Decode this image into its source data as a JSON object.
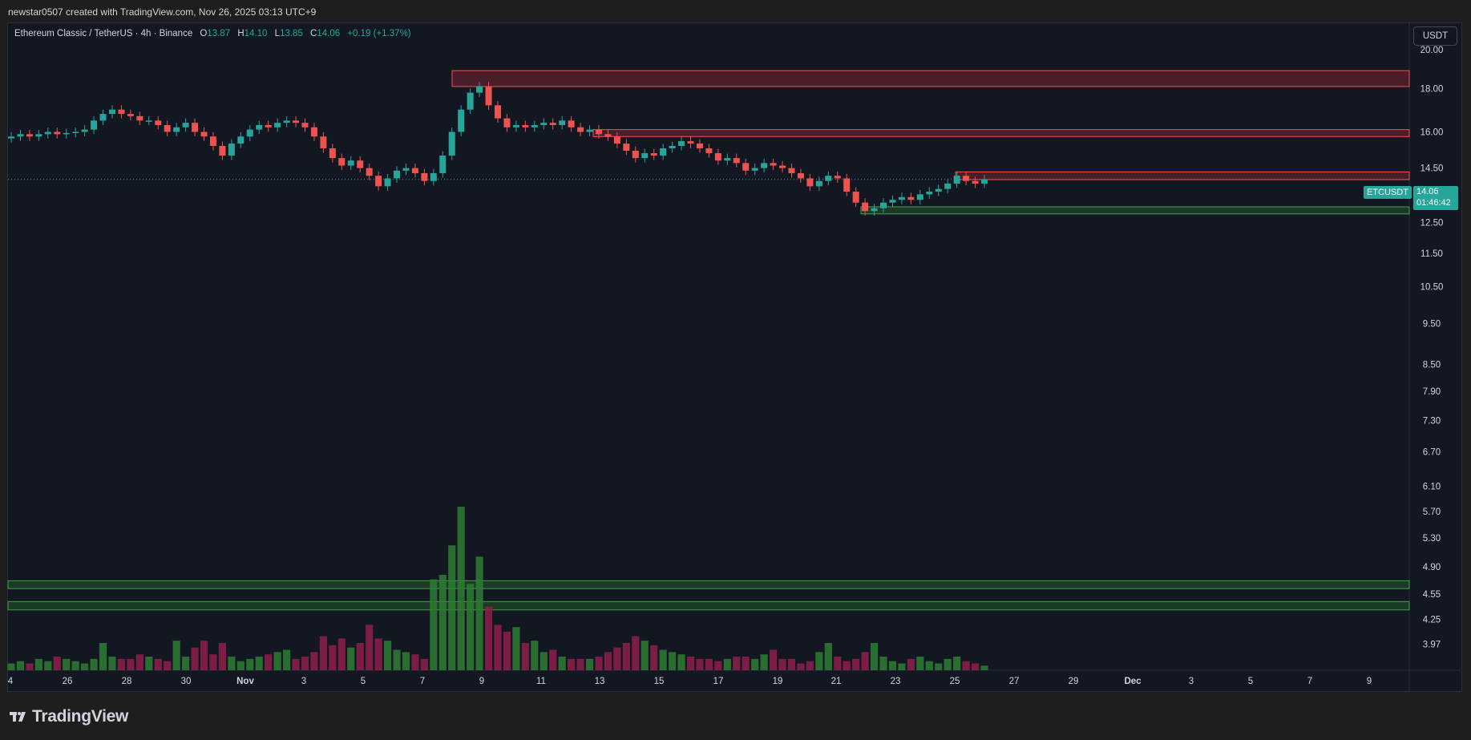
{
  "header": {
    "attribution": "newstar0507 created with TradingView.com, Nov 26, 2025 03:13 UTC+9"
  },
  "legend": {
    "symbol_desc": "Ethereum Classic / TetherUS · 4h · Binance",
    "o_label": "O",
    "o_value": "13.87",
    "h_label": "H",
    "h_value": "14.10",
    "l_label": "L",
    "l_value": "13.85",
    "c_label": "C",
    "c_value": "14.06",
    "change": "+0.19 (+1.37%)"
  },
  "currency_button": "USDT",
  "price_tag": {
    "symbol": "ETCUSDT",
    "price": "14.06",
    "countdown": "01:46:42"
  },
  "footer": {
    "brand": "TradingView"
  },
  "colors": {
    "up": "#26a69a",
    "down": "#ef5350",
    "resistance_zone": "#b22833",
    "support_zone": "#2e7d32",
    "background": "#131722"
  },
  "chart_data": {
    "type": "candlestick",
    "symbol": "ETCUSDT",
    "timeframe": "4h",
    "y_scale": "log",
    "ylim": [
      3.7,
      21.5
    ],
    "y_ticks": [
      "20.00",
      "18.00",
      "16.00",
      "14.50",
      "12.50",
      "11.50",
      "10.50",
      "9.50",
      "8.50",
      "7.90",
      "7.30",
      "6.70",
      "6.10",
      "5.70",
      "5.30",
      "4.90",
      "4.55",
      "4.25",
      "3.97"
    ],
    "x_ticks": [
      "4",
      "26",
      "28",
      "30",
      "Nov",
      "3",
      "5",
      "7",
      "9",
      "11",
      "13",
      "15",
      "17",
      "19",
      "21",
      "23",
      "25",
      "27",
      "29",
      "Dec",
      "3",
      "5",
      "7",
      "9"
    ],
    "current_price": 14.06,
    "resistance_zones": [
      [
        18.1,
        18.9
      ],
      [
        15.8,
        16.1
      ],
      [
        14.05,
        14.35
      ]
    ],
    "support_zones": [
      [
        12.8,
        13.05
      ],
      [
        4.62,
        4.72
      ],
      [
        4.36,
        4.46
      ]
    ],
    "close_path": [
      15.8,
      15.9,
      15.8,
      15.9,
      16.0,
      15.9,
      15.95,
      16.0,
      16.1,
      16.5,
      16.8,
      17.0,
      16.8,
      16.7,
      16.5,
      16.5,
      16.3,
      16.0,
      16.2,
      16.4,
      16.0,
      15.8,
      15.4,
      15.0,
      15.5,
      15.8,
      16.1,
      16.3,
      16.2,
      16.4,
      16.5,
      16.4,
      16.2,
      15.8,
      15.3,
      14.9,
      14.6,
      14.8,
      14.5,
      14.2,
      13.8,
      14.1,
      14.4,
      14.5,
      14.3,
      14.0,
      14.3,
      15.0,
      16.0,
      17.0,
      17.8,
      18.1,
      17.2,
      16.6,
      16.2,
      16.3,
      16.2,
      16.3,
      16.4,
      16.3,
      16.5,
      16.2,
      16.0,
      16.1,
      15.9,
      15.8,
      15.5,
      15.2,
      14.9,
      15.1,
      15.0,
      15.3,
      15.4,
      15.6,
      15.5,
      15.3,
      15.1,
      14.8,
      14.9,
      14.7,
      14.4,
      14.5,
      14.7,
      14.6,
      14.5,
      14.3,
      14.1,
      13.8,
      14.0,
      14.2,
      14.1,
      13.6,
      13.2,
      12.9,
      13.0,
      13.2,
      13.3,
      13.4,
      13.3,
      13.5,
      13.6,
      13.7,
      13.9,
      14.2,
      14.0,
      13.9,
      14.06
    ],
    "volume": [
      3,
      4,
      3,
      5,
      4,
      6,
      5,
      4,
      3,
      5,
      12,
      6,
      5,
      5,
      7,
      6,
      5,
      4,
      13,
      6,
      10,
      13,
      7,
      12,
      6,
      4,
      5,
      6,
      7,
      8,
      9,
      5,
      6,
      8,
      15,
      11,
      14,
      10,
      12,
      20,
      14,
      13,
      9,
      8,
      7,
      5,
      40,
      42,
      55,
      72,
      38,
      50,
      28,
      20,
      17,
      19,
      12,
      13,
      8,
      9,
      6,
      5,
      5,
      5,
      6,
      8,
      10,
      12,
      15,
      13,
      11,
      9,
      8,
      7,
      6,
      5,
      5,
      4,
      5,
      6,
      6,
      5,
      7,
      9,
      5,
      5,
      3,
      4,
      8,
      12,
      6,
      4,
      5,
      8,
      12,
      6,
      4,
      3,
      5,
      6,
      4,
      3,
      5,
      6,
      4,
      3,
      2
    ]
  }
}
